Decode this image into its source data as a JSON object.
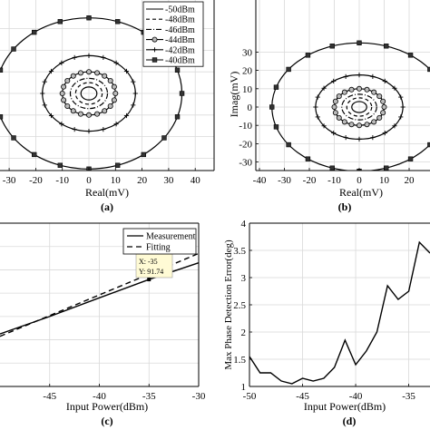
{
  "colors": {
    "line": "#000000",
    "grid": "#d9d9d9",
    "frame": "#000000",
    "datatip_bg": "#fffbd5"
  },
  "chart_data": [
    {
      "id": "a",
      "type": "line",
      "panel_label": "(a)",
      "xlabel": "Real(mV)",
      "ylabel": "",
      "xticks": [
        -30,
        -20,
        -10,
        0,
        10,
        20,
        30,
        40
      ],
      "yticks": [],
      "grid": true,
      "legend": "top-right",
      "series": [
        {
          "name": "-50dBm",
          "radius_mV": 3.0,
          "marker": "none",
          "dash": "none"
        },
        {
          "name": "-48dBm",
          "radius_mV": 5.0,
          "marker": "none",
          "dash": "4,3"
        },
        {
          "name": "-46dBm",
          "radius_mV": 7.0,
          "marker": "none",
          "dash": "6,2,1,2"
        },
        {
          "name": "-44dBm",
          "radius_mV": 10.0,
          "marker": "circle",
          "dash": "none"
        },
        {
          "name": "-42dBm",
          "radius_mV": 17.5,
          "marker": "plus",
          "dash": "none"
        },
        {
          "name": "-40dBm",
          "radius_mV": 35.0,
          "marker": "square",
          "dash": "none"
        }
      ]
    },
    {
      "id": "b",
      "type": "line",
      "panel_label": "(b)",
      "xlabel": "Real(mV)",
      "ylabel": "Imag(mV)",
      "xticks": [
        -40,
        -30,
        -20,
        -10,
        0,
        10,
        20
      ],
      "yticks": [
        -30,
        -20,
        -10,
        0,
        10,
        20,
        30
      ],
      "grid": true,
      "series": [
        {
          "radius_mV": 3.0,
          "marker": "none",
          "dash": "none"
        },
        {
          "radius_mV": 5.0,
          "marker": "none",
          "dash": "4,3"
        },
        {
          "radius_mV": 7.0,
          "marker": "none",
          "dash": "6,2,1,2"
        },
        {
          "radius_mV": 10.0,
          "marker": "circle",
          "dash": "none"
        },
        {
          "radius_mV": 17.5,
          "marker": "plus",
          "dash": "none"
        },
        {
          "radius_mV": 35.0,
          "marker": "square",
          "dash": "none"
        }
      ]
    },
    {
      "id": "c",
      "type": "line",
      "panel_label": "(c)",
      "xlabel": "Input Power(dBm)",
      "ylabel": "",
      "xticks": [
        -45,
        -40,
        -35,
        -30
      ],
      "grid": true,
      "legend": "top-right",
      "xlim": [
        -50,
        -30
      ],
      "ylim": [
        0,
        140
      ],
      "series": [
        {
          "name": "Measurement",
          "dash": "none",
          "x": [
            -50,
            -45,
            -40,
            -35,
            -30
          ],
          "y": [
            45,
            60,
            76,
            91.74,
            106
          ]
        },
        {
          "name": "Fitting",
          "dash": "6,4",
          "x": [
            -50,
            -30
          ],
          "y": [
            43,
            114
          ]
        }
      ],
      "datatip": {
        "x_text": "X: -35",
        "y_text": "Y: 91.74",
        "x": -35,
        "y": 91.74
      }
    },
    {
      "id": "d",
      "type": "line",
      "panel_label": "(d)",
      "xlabel": "Input Power(dBm)",
      "ylabel": "Max Phase Detection Error(deg)",
      "xticks": [
        -50,
        -45,
        -40,
        -35
      ],
      "yticks": [
        1,
        1.5,
        2,
        2.5,
        3,
        3.5,
        4
      ],
      "grid": true,
      "xlim": [
        -50,
        -33
      ],
      "ylim": [
        1,
        4
      ],
      "series": [
        {
          "x": [
            -50,
            -49,
            -48,
            -47,
            -46,
            -45,
            -44,
            -43,
            -42,
            -41,
            -40,
            -39,
            -38,
            -37,
            -36,
            -35,
            -34,
            -33
          ],
          "y": [
            1.55,
            1.25,
            1.25,
            1.1,
            1.05,
            1.15,
            1.1,
            1.15,
            1.35,
            1.85,
            1.4,
            1.65,
            2.0,
            2.85,
            2.6,
            2.75,
            3.65,
            3.45
          ]
        }
      ]
    }
  ]
}
